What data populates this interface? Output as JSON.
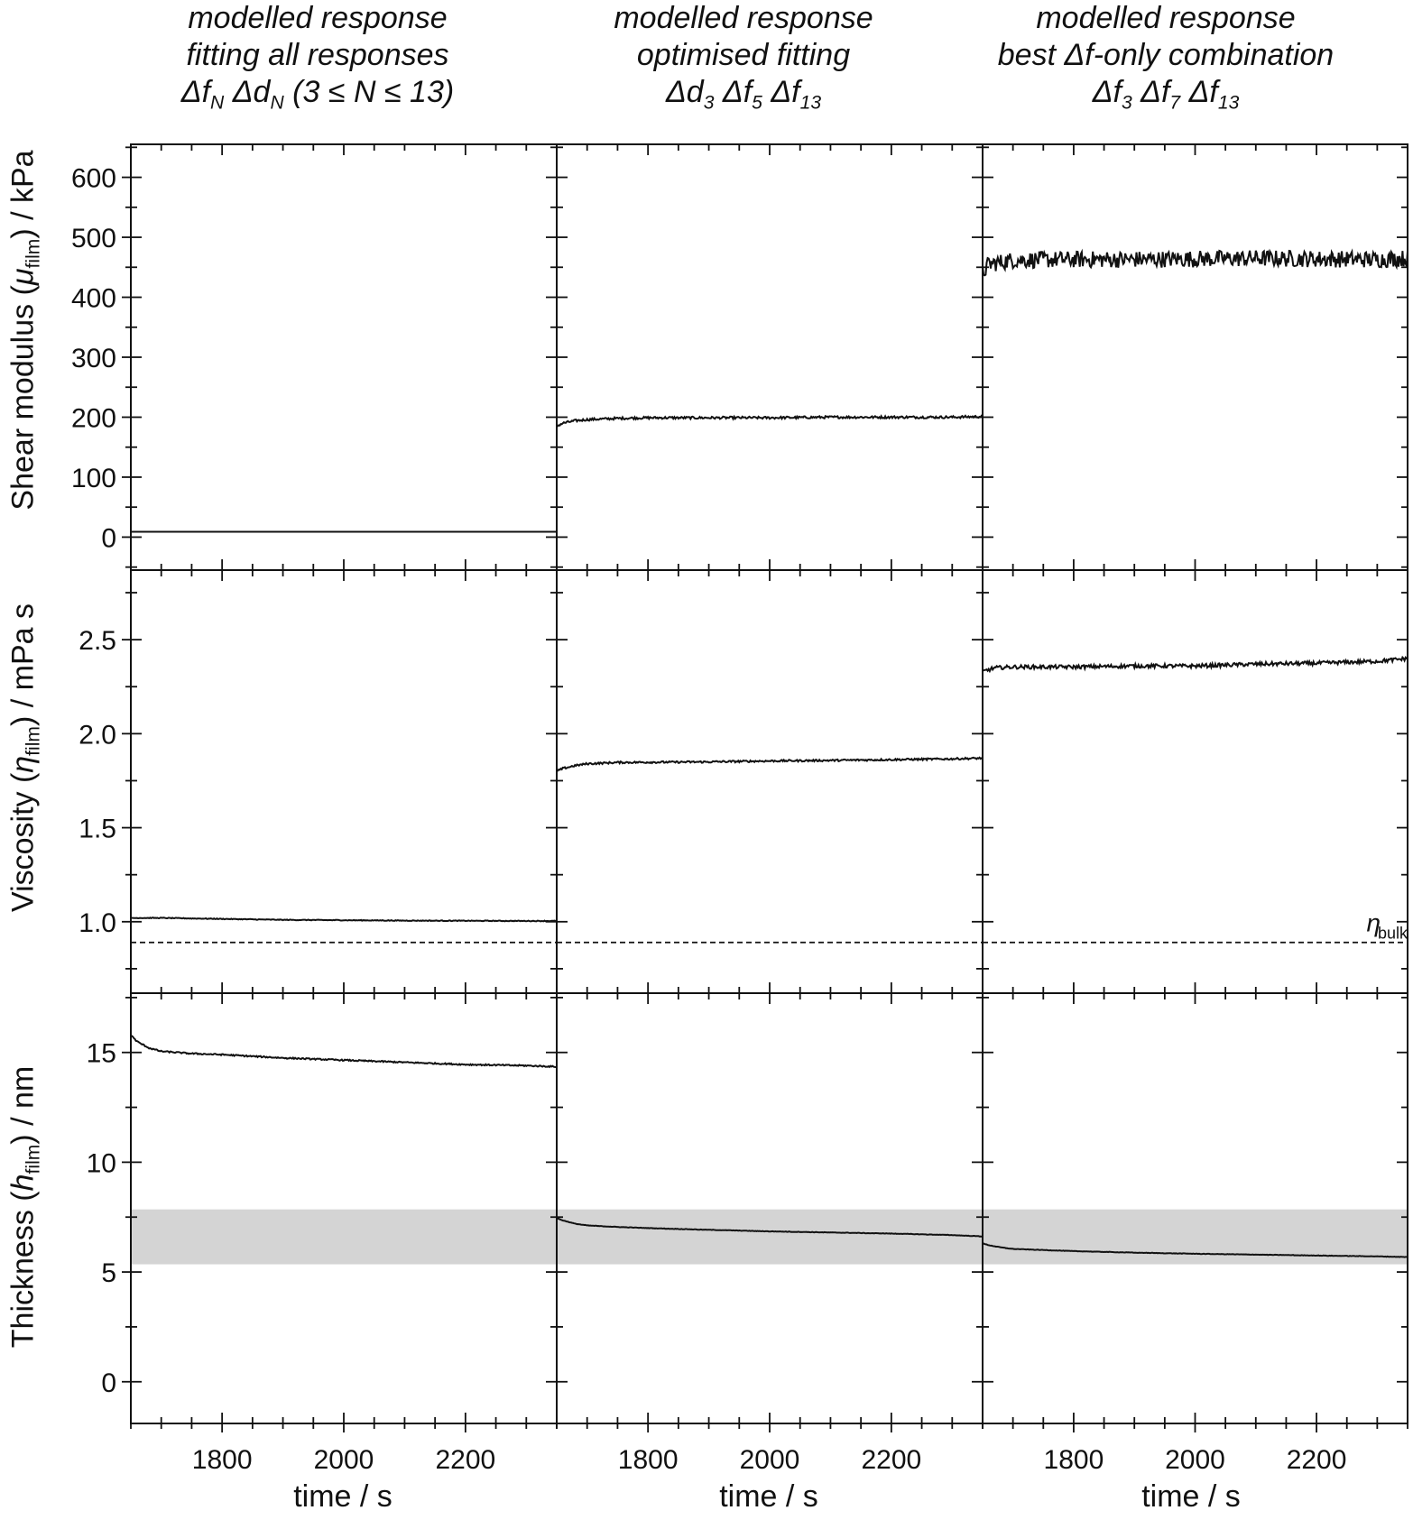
{
  "columns": [
    {
      "title": "modelled response",
      "subtitle": "fitting all responses",
      "combo_html": "Δ<i>f</i><sub>N</sub> Δ<i>d</i><sub>N</sub> (3 ≤ <i>N</i> ≤ 13)"
    },
    {
      "title": "modelled response",
      "subtitle": "optimised fitting",
      "combo_html": "Δ<i>d</i><sub>3</sub> Δ<i>f</i><sub>5</sub> Δ<i>f</i><sub>13</sub>"
    },
    {
      "title": "modelled response",
      "subtitle": "best Δf-only combination",
      "combo_html": "Δ<i>f</i><sub>3</sub> Δ<i>f</i><sub>7</sub> Δ<i>f</i><sub>13</sub>"
    }
  ],
  "rows": [
    {
      "label_html": "Shear modulus (<i>μ</i><sub class=\"up\">film</sub>) / kPa"
    },
    {
      "label_html": "Viscosity (<i>η</i><sub class=\"up\">film</sub>) / mPa s"
    },
    {
      "label_html": "Thickness (<i>h</i><sub class=\"up\">film</sub>) / nm"
    }
  ],
  "x_label": "time / s",
  "bulk_label": "η",
  "bulk_sub": "bulk",
  "chart_data": {
    "type": "line",
    "x": {
      "label": "time / s",
      "lim": [
        1650,
        2350
      ],
      "ticks": [
        1800,
        2000,
        2200
      ]
    },
    "rows": [
      {
        "name": "Shear modulus",
        "unit": "kPa",
        "lim": [
          -55,
          655
        ],
        "ticks": [
          0,
          100,
          200,
          300,
          400,
          500,
          600
        ]
      },
      {
        "name": "Viscosity",
        "unit": "mPa s",
        "lim": [
          0.62,
          2.87
        ],
        "ticks": [
          1.0,
          1.5,
          2.0,
          2.5
        ]
      },
      {
        "name": "Thickness",
        "unit": "nm",
        "lim": [
          -1.9,
          17.7
        ],
        "ticks": [
          0,
          5,
          10,
          15
        ]
      }
    ],
    "eta_bulk": 0.89,
    "thickness_band": [
      5.35,
      7.85
    ],
    "panels": [
      {
        "row": 0,
        "col": 0,
        "points": [
          [
            1650,
            9
          ],
          [
            1700,
            9
          ],
          [
            1800,
            9
          ],
          [
            1900,
            9
          ],
          [
            2000,
            9
          ],
          [
            2100,
            9
          ],
          [
            2200,
            9
          ],
          [
            2300,
            9
          ],
          [
            2350,
            9
          ]
        ],
        "noise": 0
      },
      {
        "row": 0,
        "col": 1,
        "points": [
          [
            1650,
            185
          ],
          [
            1660,
            190
          ],
          [
            1680,
            194
          ],
          [
            1700,
            196
          ],
          [
            1750,
            198
          ],
          [
            1800,
            199
          ],
          [
            1900,
            199
          ],
          [
            2000,
            199
          ],
          [
            2100,
            200
          ],
          [
            2200,
            200
          ],
          [
            2300,
            200
          ],
          [
            2350,
            201
          ]
        ],
        "noise": 2
      },
      {
        "row": 0,
        "col": 2,
        "points": [
          [
            1650,
            440
          ],
          [
            1660,
            455
          ],
          [
            1700,
            462
          ],
          [
            1800,
            463
          ],
          [
            1900,
            463
          ],
          [
            2000,
            464
          ],
          [
            2100,
            465
          ],
          [
            2200,
            464
          ],
          [
            2300,
            463
          ],
          [
            2350,
            465
          ]
        ],
        "noise": 14
      },
      {
        "row": 1,
        "col": 0,
        "points": [
          [
            1650,
            1.02
          ],
          [
            1700,
            1.02
          ],
          [
            1800,
            1.015
          ],
          [
            1900,
            1.01
          ],
          [
            2000,
            1.008
          ],
          [
            2100,
            1.006
          ],
          [
            2200,
            1.005
          ],
          [
            2300,
            1.004
          ],
          [
            2350,
            1.004
          ]
        ],
        "noise": 0.002
      },
      {
        "row": 1,
        "col": 1,
        "points": [
          [
            1650,
            1.8
          ],
          [
            1660,
            1.815
          ],
          [
            1680,
            1.83
          ],
          [
            1700,
            1.84
          ],
          [
            1750,
            1.847
          ],
          [
            1800,
            1.848
          ],
          [
            1900,
            1.85
          ],
          [
            2000,
            1.855
          ],
          [
            2100,
            1.858
          ],
          [
            2200,
            1.862
          ],
          [
            2300,
            1.866
          ],
          [
            2350,
            1.87
          ]
        ],
        "noise": 0.005
      },
      {
        "row": 1,
        "col": 2,
        "points": [
          [
            1650,
            2.33
          ],
          [
            1670,
            2.35
          ],
          [
            1700,
            2.355
          ],
          [
            1800,
            2.355
          ],
          [
            1900,
            2.36
          ],
          [
            2000,
            2.36
          ],
          [
            2100,
            2.37
          ],
          [
            2200,
            2.375
          ],
          [
            2300,
            2.385
          ],
          [
            2350,
            2.4
          ]
        ],
        "noise": 0.01
      },
      {
        "row": 2,
        "col": 0,
        "points": [
          [
            1650,
            15.8
          ],
          [
            1660,
            15.5
          ],
          [
            1680,
            15.2
          ],
          [
            1700,
            15.05
          ],
          [
            1750,
            14.95
          ],
          [
            1800,
            14.9
          ],
          [
            1900,
            14.75
          ],
          [
            2000,
            14.65
          ],
          [
            2100,
            14.55
          ],
          [
            2200,
            14.45
          ],
          [
            2300,
            14.4
          ],
          [
            2350,
            14.35
          ]
        ],
        "noise": 0.03
      },
      {
        "row": 2,
        "col": 1,
        "points": [
          [
            1650,
            7.45
          ],
          [
            1660,
            7.35
          ],
          [
            1680,
            7.2
          ],
          [
            1700,
            7.12
          ],
          [
            1750,
            7.05
          ],
          [
            1800,
            7.0
          ],
          [
            1900,
            6.92
          ],
          [
            2000,
            6.85
          ],
          [
            2100,
            6.8
          ],
          [
            2200,
            6.75
          ],
          [
            2300,
            6.68
          ],
          [
            2350,
            6.62
          ]
        ],
        "noise": 0.01
      },
      {
        "row": 2,
        "col": 2,
        "points": [
          [
            1650,
            6.3
          ],
          [
            1660,
            6.22
          ],
          [
            1680,
            6.12
          ],
          [
            1700,
            6.05
          ],
          [
            1750,
            6.0
          ],
          [
            1800,
            5.95
          ],
          [
            1900,
            5.88
          ],
          [
            2000,
            5.83
          ],
          [
            2100,
            5.79
          ],
          [
            2200,
            5.75
          ],
          [
            2300,
            5.71
          ],
          [
            2350,
            5.68
          ]
        ],
        "noise": 0.01
      }
    ]
  }
}
